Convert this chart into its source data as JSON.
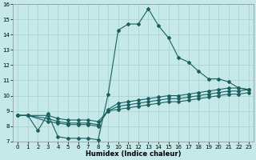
{
  "xlabel": "Humidex (Indice chaleur)",
  "bg_color": "#c5e8e8",
  "line_color": "#1a6060",
  "grid_color": "#aacece",
  "xlim": [
    -0.5,
    23.5
  ],
  "ylim": [
    7,
    16
  ],
  "xticks": [
    0,
    1,
    2,
    3,
    4,
    5,
    6,
    7,
    8,
    9,
    10,
    11,
    12,
    13,
    14,
    15,
    16,
    17,
    18,
    19,
    20,
    21,
    22,
    23
  ],
  "yticks": [
    7,
    8,
    9,
    10,
    11,
    12,
    13,
    14,
    15,
    16
  ],
  "line1_x": [
    0,
    1,
    2,
    3,
    4,
    5,
    6,
    7,
    8,
    9,
    10,
    11,
    12,
    13,
    14,
    15,
    16,
    17,
    18,
    19,
    20,
    21,
    22,
    23
  ],
  "line1_y": [
    8.7,
    8.7,
    7.7,
    8.8,
    7.3,
    7.2,
    7.2,
    7.2,
    7.1,
    10.1,
    14.3,
    14.7,
    14.7,
    15.7,
    14.6,
    13.8,
    12.5,
    12.2,
    11.6,
    11.1,
    11.1,
    10.9,
    10.5,
    10.4
  ],
  "line2_x": [
    0,
    1,
    3,
    4,
    5,
    6,
    7,
    8,
    9,
    10,
    11,
    12,
    13,
    14,
    15,
    16,
    17,
    18,
    19,
    20,
    21,
    22,
    23
  ],
  "line2_y": [
    8.7,
    8.7,
    8.3,
    8.2,
    8.1,
    8.1,
    8.1,
    8.0,
    9.1,
    9.5,
    9.6,
    9.7,
    9.8,
    9.9,
    10.0,
    10.0,
    10.1,
    10.2,
    10.3,
    10.4,
    10.5,
    10.5,
    10.4
  ],
  "line3_x": [
    0,
    1,
    3,
    4,
    5,
    6,
    7,
    8,
    9,
    10,
    11,
    12,
    13,
    14,
    15,
    16,
    17,
    18,
    19,
    20,
    21,
    22,
    23
  ],
  "line3_y": [
    8.7,
    8.7,
    8.5,
    8.3,
    8.2,
    8.2,
    8.2,
    8.1,
    9.0,
    9.3,
    9.4,
    9.5,
    9.6,
    9.7,
    9.8,
    9.8,
    9.9,
    10.0,
    10.1,
    10.2,
    10.3,
    10.3,
    10.4
  ],
  "line4_x": [
    0,
    1,
    3,
    4,
    5,
    6,
    7,
    8,
    9,
    10,
    11,
    12,
    13,
    14,
    15,
    16,
    17,
    18,
    19,
    20,
    21,
    22,
    23
  ],
  "line4_y": [
    8.7,
    8.7,
    8.7,
    8.5,
    8.4,
    8.4,
    8.4,
    8.3,
    9.0,
    9.1,
    9.2,
    9.3,
    9.4,
    9.5,
    9.6,
    9.6,
    9.7,
    9.8,
    9.9,
    10.0,
    10.1,
    10.1,
    10.2
  ]
}
